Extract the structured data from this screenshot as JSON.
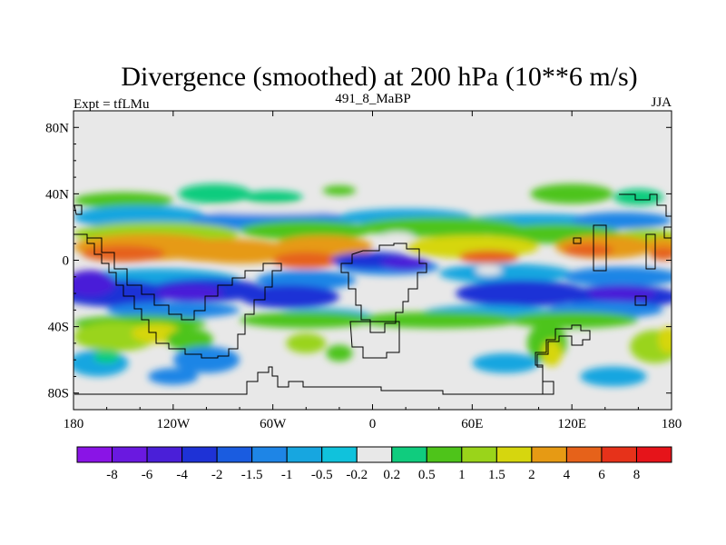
{
  "chart_data": {
    "type": "heatmap",
    "title": "Divergence (smoothed) at 200 hPa (10**6 m/s)",
    "left_label": "Expt = tfLMu",
    "center_label": "491_8_MaBP",
    "right_label": "JJA",
    "x_ticks": [
      {
        "value": -180,
        "label": "180"
      },
      {
        "value": -120,
        "label": "120W"
      },
      {
        "value": -60,
        "label": "60W"
      },
      {
        "value": 0,
        "label": "0"
      },
      {
        "value": 60,
        "label": "60E"
      },
      {
        "value": 120,
        "label": "120E"
      },
      {
        "value": 180,
        "label": "180"
      }
    ],
    "y_ticks": [
      {
        "value": 80,
        "label": "80N"
      },
      {
        "value": 40,
        "label": "40N"
      },
      {
        "value": 0,
        "label": "0"
      },
      {
        "value": -40,
        "label": "40S"
      },
      {
        "value": -80,
        "label": "80S"
      }
    ],
    "xlim": [
      -180,
      180
    ],
    "ylim": [
      -90,
      90
    ],
    "levels": [
      -8,
      -6,
      -4,
      -2,
      -1.5,
      -1,
      -0.5,
      -0.2,
      0.2,
      0.5,
      1,
      1.5,
      2,
      4,
      6,
      8
    ],
    "level_labels": [
      "-8",
      "-6",
      "-4",
      "-2",
      "-1.5",
      "-1",
      "-0.5",
      "-0.2",
      "0.2",
      "0.5",
      "1",
      "1.5",
      "2",
      "4",
      "6",
      "8"
    ],
    "colors": [
      "#8a14e6",
      "#6a19e0",
      "#4a1fd8",
      "#1e32d6",
      "#1a5ce0",
      "#1e85e6",
      "#17a6e0",
      "#10c2dc",
      "#e8e8e8",
      "#10cc7e",
      "#4ec41a",
      "#9ad41a",
      "#d6d60e",
      "#e69a14",
      "#e6621a",
      "#e6321a",
      "#e6141a"
    ]
  }
}
